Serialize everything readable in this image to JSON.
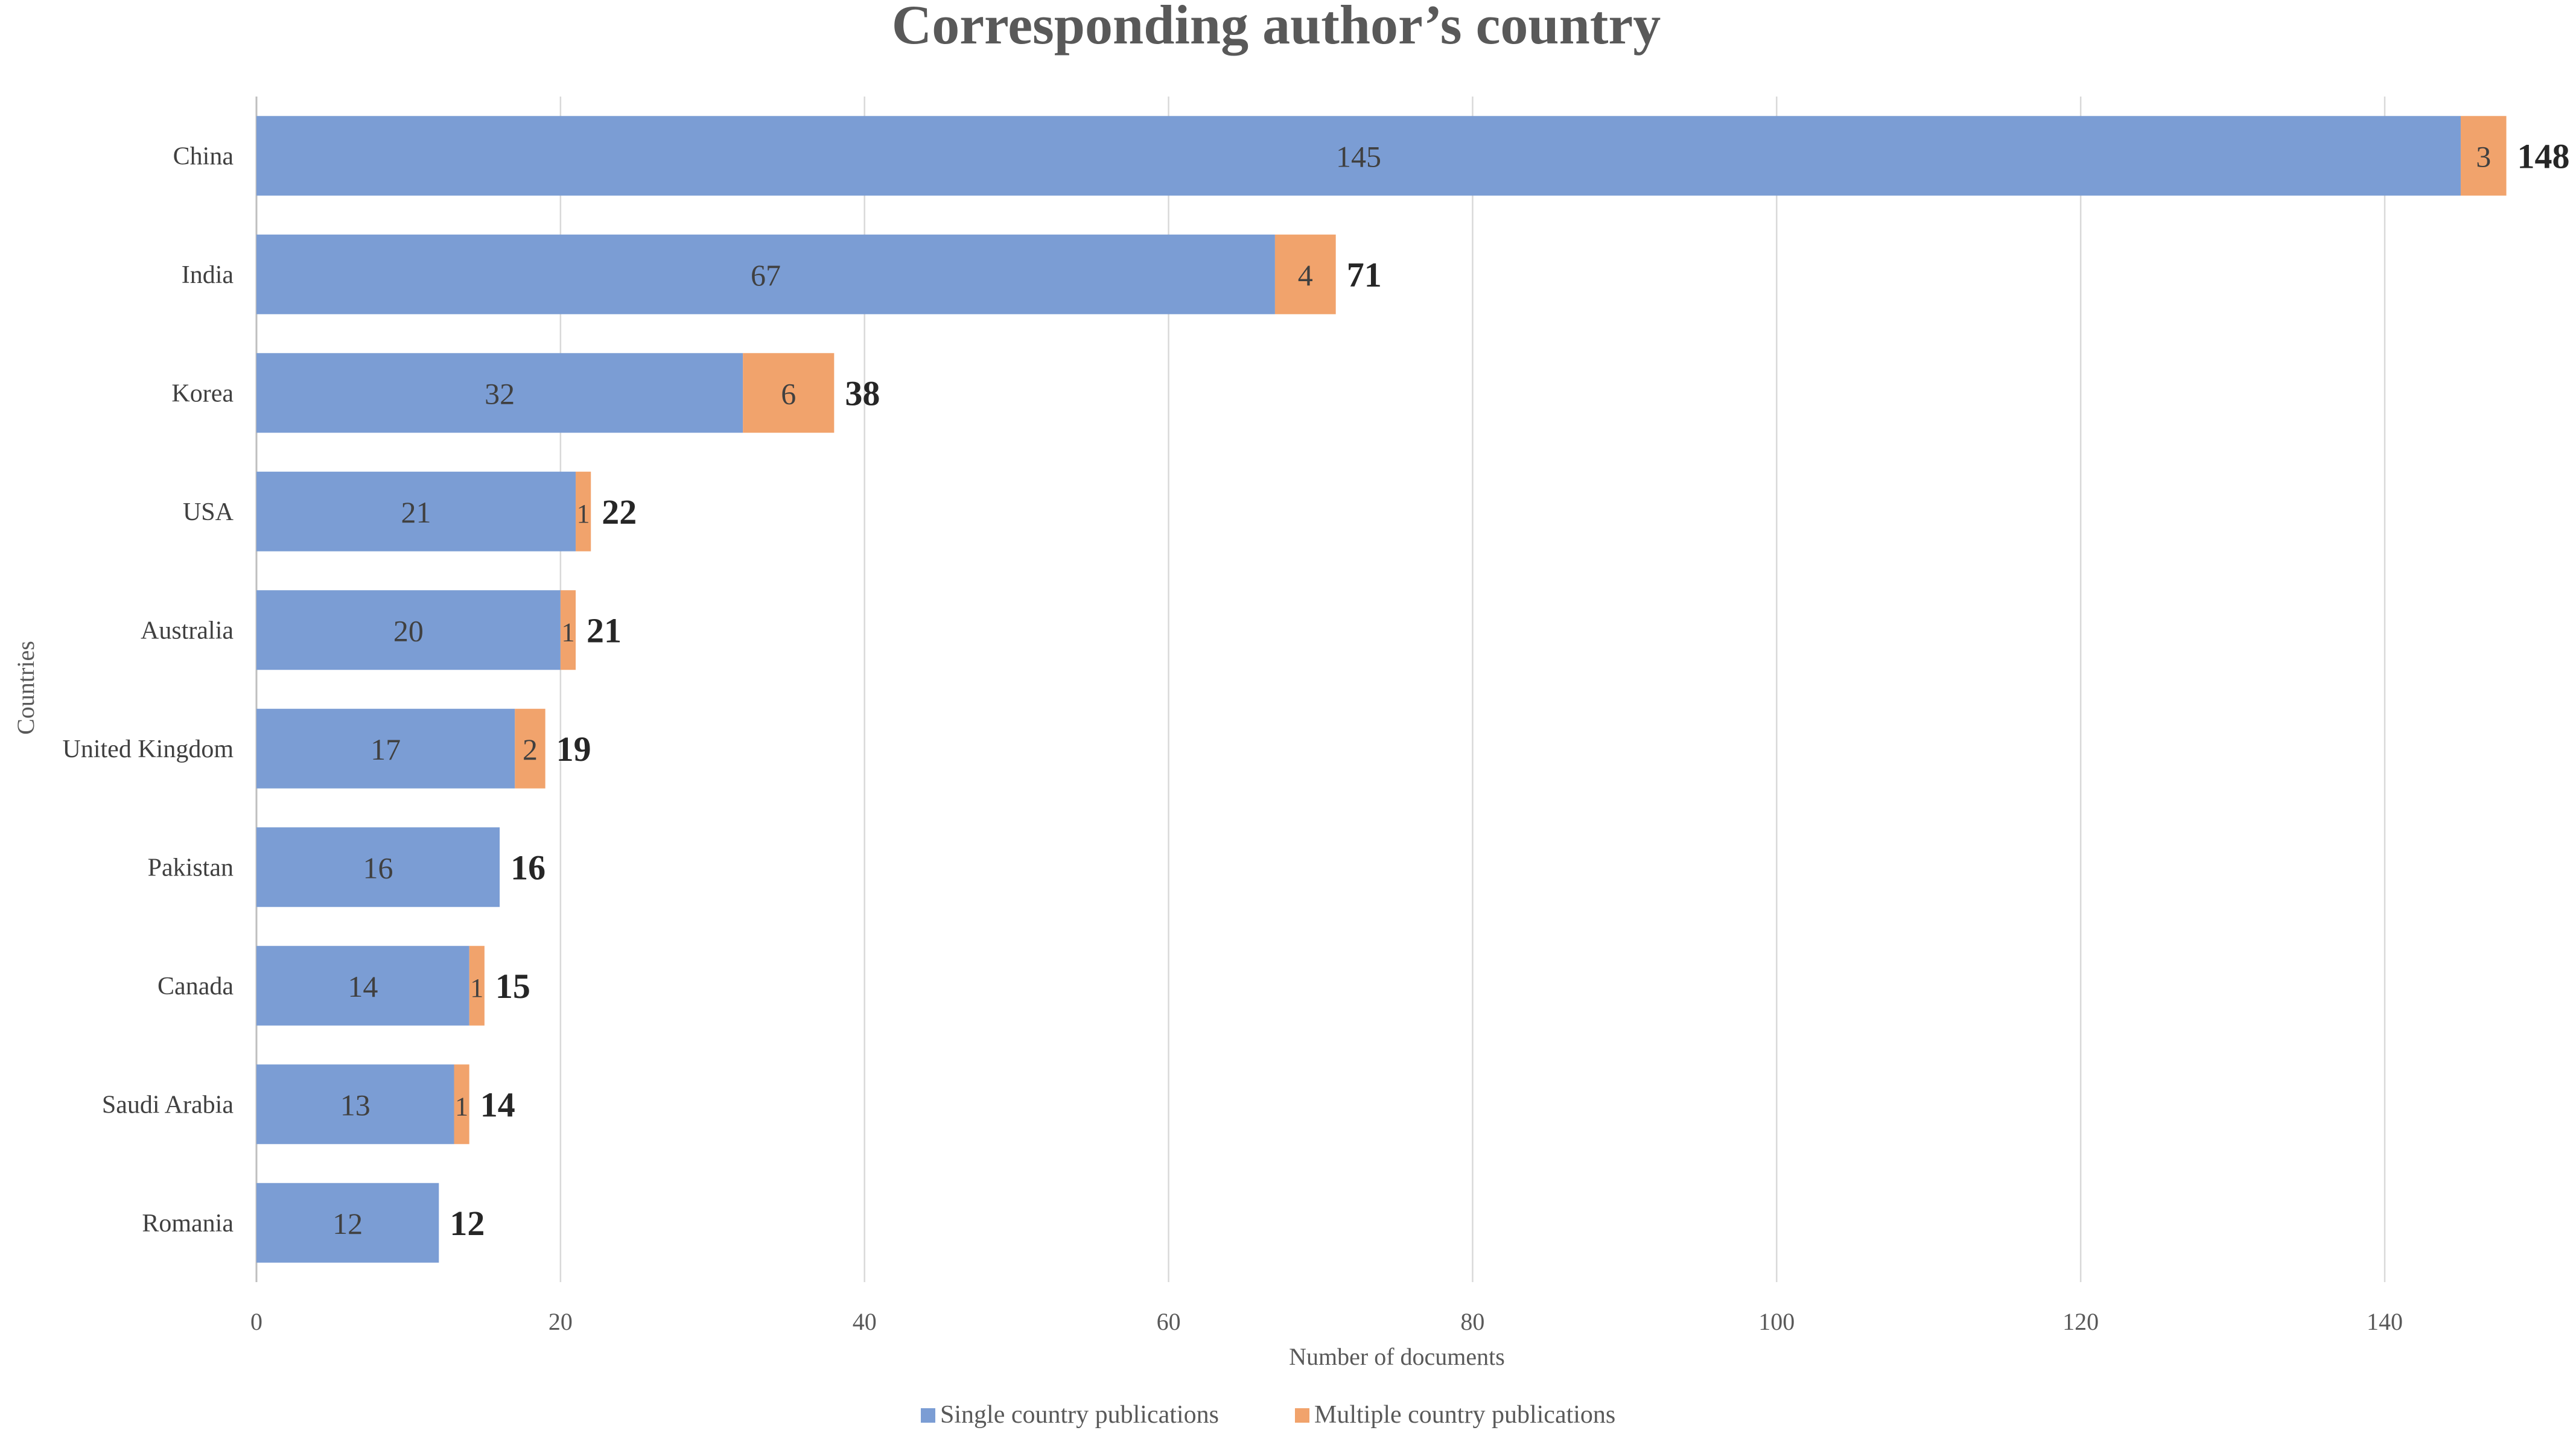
{
  "chart_data": {
    "type": "bar",
    "orientation": "horizontal",
    "stacked": true,
    "title": "Corresponding author’s country",
    "xlabel": "Number of documents",
    "ylabel": "Countries",
    "xlim": [
      0,
      150
    ],
    "xticks": [
      0,
      20,
      40,
      60,
      80,
      100,
      120,
      140
    ],
    "grid": true,
    "legend_position": "bottom",
    "categories": [
      "China",
      "India",
      "Korea",
      "USA",
      "Australia",
      "United Kingdom",
      "Pakistan",
      "Canada",
      "Saudi Arabia",
      "Romania"
    ],
    "series": [
      {
        "name": "Single country publications",
        "color": "#7b9dd4",
        "values": [
          145,
          67,
          32,
          21,
          20,
          17,
          16,
          14,
          13,
          12
        ]
      },
      {
        "name": "Multiple country publications",
        "color": "#f1a36c",
        "values": [
          3,
          4,
          6,
          1,
          1,
          2,
          0,
          1,
          1,
          0
        ]
      }
    ],
    "totals": [
      148,
      71,
      38,
      22,
      21,
      19,
      16,
      15,
      14,
      12
    ]
  }
}
